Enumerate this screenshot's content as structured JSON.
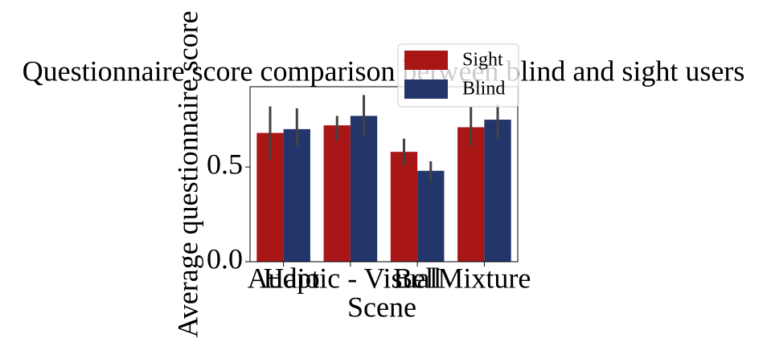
{
  "chart_data": {
    "type": "bar",
    "title": "Questionnaire score comparison between blind and sight users",
    "x_label": "Scene",
    "y_label": "Average questionnaire score",
    "categories": [
      "Audio",
      "Haptic - Visual",
      "Bell",
      "Mixture"
    ],
    "series": [
      {
        "name": "Sight",
        "color": "#a81616",
        "values": [
          0.68,
          0.72,
          0.58,
          0.71
        ],
        "error_low": [
          0.54,
          0.64,
          0.51,
          0.61
        ],
        "error_high": [
          0.82,
          0.77,
          0.65,
          0.82
        ]
      },
      {
        "name": "Blind",
        "color": "#23366b",
        "values": [
          0.7,
          0.77,
          0.48,
          0.75
        ],
        "error_low": [
          0.61,
          0.67,
          0.42,
          0.65
        ],
        "error_high": [
          0.81,
          0.88,
          0.53,
          0.83
        ]
      }
    ],
    "ylim": [
      0,
      0.924
    ],
    "yticks": [
      {
        "value": 0,
        "label": "0.0"
      },
      0.5
    ],
    "legend": "upper right"
  }
}
